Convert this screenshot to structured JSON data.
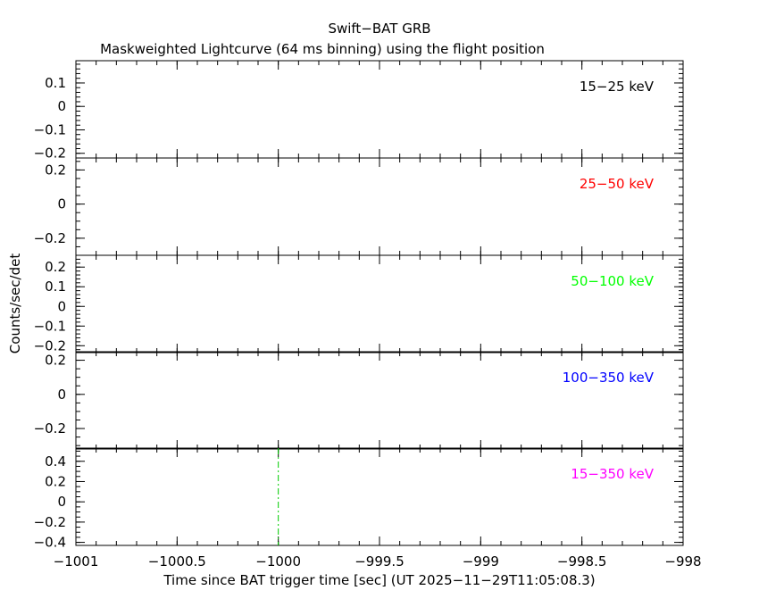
{
  "chart_data": {
    "type": "line",
    "title": "Swift−BAT GRB",
    "subtitle": "Maskweighted Lightcurve (64 ms binning) using the flight position",
    "xlabel": "Time since BAT trigger time [sec] (UT 2025−11−29T11:05:08.3)",
    "ylabel": "Counts/sec/det",
    "xlim": [
      -1001,
      -998
    ],
    "x_ticks": [
      -1001,
      -1000.5,
      -1000,
      -999.5,
      -999,
      -998.5,
      -998
    ],
    "x_tick_labels": [
      "−1001",
      "−1000.5",
      "−1000",
      "−999.5",
      "−999",
      "−998.5",
      "−998"
    ],
    "trigger_marker_x": -1000,
    "trigger_marker_color": "#00cc00",
    "panels": [
      {
        "band": "15−25 keV",
        "color": "#000000",
        "ylim": [
          -0.22,
          0.195
        ],
        "y_ticks": [
          0.1,
          0,
          -0.1,
          -0.2
        ],
        "y_tick_labels": [
          "0.1",
          "0",
          "−0.1",
          "−0.2"
        ],
        "minor_step": 0.02,
        "values": []
      },
      {
        "band": "25−50 keV",
        "color": "#ff0000",
        "ylim": [
          -0.3,
          0.27
        ],
        "y_ticks": [
          0.2,
          0,
          -0.2
        ],
        "y_tick_labels": [
          "0.2",
          "0",
          "−0.2"
        ],
        "minor_step": 0.05,
        "values": []
      },
      {
        "band": "50−100 keV",
        "color": "#00ff00",
        "ylim": [
          -0.235,
          0.26
        ],
        "y_ticks": [
          0.2,
          0.1,
          0,
          -0.1,
          -0.2
        ],
        "y_tick_labels": [
          "0.2",
          "0.1",
          "0",
          "−0.1",
          "−0.2"
        ],
        "minor_step": 0.02,
        "values": []
      },
      {
        "band": "100−350 keV",
        "color": "#0000ff",
        "ylim": [
          -0.32,
          0.25
        ],
        "y_ticks": [
          0.2,
          0,
          -0.2
        ],
        "y_tick_labels": [
          "0.2",
          "0",
          "−0.2"
        ],
        "minor_step": 0.05,
        "values": []
      },
      {
        "band": "15−350 keV",
        "color": "#ff00ff",
        "ylim": [
          -0.43,
          0.53
        ],
        "y_ticks": [
          0.4,
          0.2,
          0,
          -0.2,
          -0.4
        ],
        "y_tick_labels": [
          "0.4",
          "0.2",
          "0",
          "−0.2",
          "−0.4"
        ],
        "minor_step": 0.05,
        "values": []
      }
    ]
  }
}
